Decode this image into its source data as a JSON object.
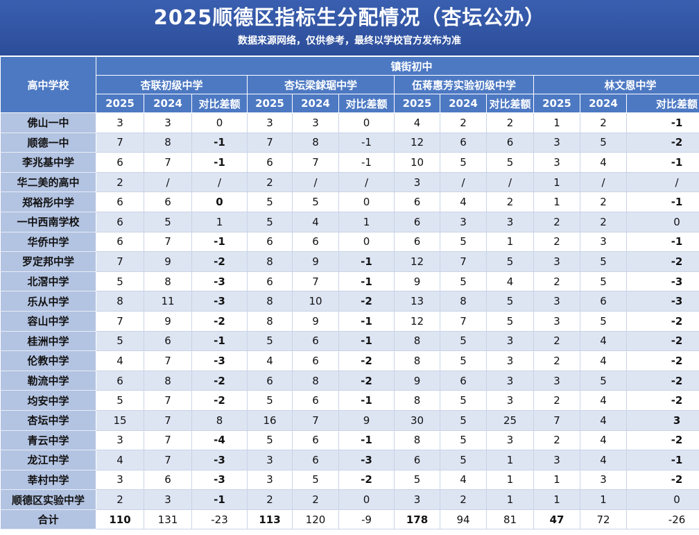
{
  "header": {
    "title": "2025顺德区指标生分配情况（杏坛公办）",
    "subtitle": "数据来源网络，仅供参考，最终以学校官方发布为准"
  },
  "table": {
    "corner_label": "高中学校",
    "group_label": "镇街初中",
    "schools": [
      "杏联初级中学",
      "杏坛梁銶琚中学",
      "伍蒋惠芳实验初级中学",
      "林文恩中学"
    ],
    "sub_columns": [
      "2025",
      "2024",
      "对比差额"
    ],
    "rows": [
      {
        "name": "佛山一中",
        "cells": [
          [
            "3",
            "3",
            "0"
          ],
          [
            "3",
            "3",
            "0"
          ],
          [
            "4",
            "2",
            "2"
          ],
          [
            "1",
            "2",
            "-1"
          ]
        ]
      },
      {
        "name": "顺德一中",
        "cells": [
          [
            "7",
            "8",
            "-1"
          ],
          [
            "7",
            "8",
            "-1"
          ],
          [
            "12",
            "6",
            "6"
          ],
          [
            "3",
            "5",
            "-2"
          ]
        ]
      },
      {
        "name": "李兆基中学",
        "cells": [
          [
            "6",
            "7",
            "-1"
          ],
          [
            "6",
            "7",
            "-1"
          ],
          [
            "10",
            "5",
            "5"
          ],
          [
            "3",
            "4",
            "-1"
          ]
        ]
      },
      {
        "name": "华二美的高中",
        "cells": [
          [
            "2",
            "/",
            "/"
          ],
          [
            "2",
            "/",
            "/"
          ],
          [
            "3",
            "/",
            "/"
          ],
          [
            "1",
            "/",
            "/"
          ]
        ]
      },
      {
        "name": "郑裕彤中学",
        "cells": [
          [
            "6",
            "6",
            "0"
          ],
          [
            "5",
            "5",
            "0"
          ],
          [
            "6",
            "4",
            "2"
          ],
          [
            "1",
            "2",
            "-1"
          ]
        ]
      },
      {
        "name": "一中西南学校",
        "cells": [
          [
            "6",
            "5",
            "1"
          ],
          [
            "5",
            "4",
            "1"
          ],
          [
            "6",
            "3",
            "3"
          ],
          [
            "2",
            "2",
            "0"
          ]
        ]
      },
      {
        "name": "华侨中学",
        "cells": [
          [
            "6",
            "7",
            "-1"
          ],
          [
            "6",
            "6",
            "0"
          ],
          [
            "6",
            "5",
            "1"
          ],
          [
            "2",
            "3",
            "-1"
          ]
        ]
      },
      {
        "name": "罗定邦中学",
        "cells": [
          [
            "7",
            "9",
            "-2"
          ],
          [
            "8",
            "9",
            "-1"
          ],
          [
            "12",
            "7",
            "5"
          ],
          [
            "3",
            "5",
            "-2"
          ]
        ]
      },
      {
        "name": "北滘中学",
        "cells": [
          [
            "5",
            "8",
            "-3"
          ],
          [
            "6",
            "7",
            "-1"
          ],
          [
            "9",
            "5",
            "4"
          ],
          [
            "2",
            "5",
            "-3"
          ]
        ]
      },
      {
        "name": "乐从中学",
        "cells": [
          [
            "8",
            "11",
            "-3"
          ],
          [
            "8",
            "10",
            "-2"
          ],
          [
            "13",
            "8",
            "5"
          ],
          [
            "3",
            "6",
            "-3"
          ]
        ]
      },
      {
        "name": "容山中学",
        "cells": [
          [
            "7",
            "9",
            "-2"
          ],
          [
            "8",
            "9",
            "-1"
          ],
          [
            "12",
            "7",
            "5"
          ],
          [
            "3",
            "5",
            "-2"
          ]
        ]
      },
      {
        "name": "桂洲中学",
        "cells": [
          [
            "5",
            "6",
            "-1"
          ],
          [
            "5",
            "6",
            "-1"
          ],
          [
            "8",
            "5",
            "3"
          ],
          [
            "2",
            "4",
            "-2"
          ]
        ]
      },
      {
        "name": "伦教中学",
        "cells": [
          [
            "4",
            "7",
            "-3"
          ],
          [
            "4",
            "6",
            "-2"
          ],
          [
            "8",
            "5",
            "3"
          ],
          [
            "2",
            "4",
            "-2"
          ]
        ]
      },
      {
        "name": "勒流中学",
        "cells": [
          [
            "6",
            "8",
            "-2"
          ],
          [
            "6",
            "8",
            "-2"
          ],
          [
            "9",
            "6",
            "3"
          ],
          [
            "3",
            "5",
            "-2"
          ]
        ]
      },
      {
        "name": "均安中学",
        "cells": [
          [
            "5",
            "7",
            "-2"
          ],
          [
            "5",
            "6",
            "-1"
          ],
          [
            "8",
            "5",
            "3"
          ],
          [
            "2",
            "4",
            "-2"
          ]
        ]
      },
      {
        "name": "杏坛中学",
        "cells": [
          [
            "15",
            "7",
            "8"
          ],
          [
            "16",
            "7",
            "9"
          ],
          [
            "30",
            "5",
            "25"
          ],
          [
            "7",
            "4",
            "3"
          ]
        ]
      },
      {
        "name": "青云中学",
        "cells": [
          [
            "3",
            "7",
            "-4"
          ],
          [
            "5",
            "6",
            "-1"
          ],
          [
            "8",
            "5",
            "3"
          ],
          [
            "2",
            "4",
            "-2"
          ]
        ]
      },
      {
        "name": "龙江中学",
        "cells": [
          [
            "4",
            "7",
            "-3"
          ],
          [
            "3",
            "6",
            "-3"
          ],
          [
            "6",
            "5",
            "1"
          ],
          [
            "3",
            "4",
            "-1"
          ]
        ]
      },
      {
        "name": "莘村中学",
        "cells": [
          [
            "3",
            "6",
            "-3"
          ],
          [
            "3",
            "5",
            "-2"
          ],
          [
            "5",
            "4",
            "1"
          ],
          [
            "1",
            "3",
            "-2"
          ]
        ]
      },
      {
        "name": "顺德区实验中学",
        "cells": [
          [
            "2",
            "3",
            "-1"
          ],
          [
            "2",
            "2",
            "0"
          ],
          [
            "3",
            "2",
            "1"
          ],
          [
            "1",
            "1",
            "0"
          ]
        ]
      }
    ],
    "total": {
      "name": "合计",
      "cells": [
        [
          "110",
          "131",
          "-23"
        ],
        [
          "113",
          "120",
          "-9"
        ],
        [
          "178",
          "94",
          "81"
        ],
        [
          "47",
          "72",
          "-26"
        ]
      ]
    },
    "bold_cells": [
      "1-0-2",
      "2-0-2",
      "4-0-2",
      "6-0-2",
      "7-0-2",
      "8-0-2",
      "9-0-2",
      "10-0-2",
      "11-0-2",
      "12-0-2",
      "13-0-2",
      "14-0-2",
      "16-0-2",
      "17-0-2",
      "18-0-2",
      "19-0-2",
      "7-1-2",
      "8-1-2",
      "9-1-2",
      "10-1-2",
      "11-1-2",
      "12-1-2",
      "13-1-2",
      "14-1-2",
      "16-1-2",
      "17-1-2",
      "18-1-2",
      "0-3-2",
      "1-3-2",
      "2-3-2",
      "4-3-2",
      "6-3-2",
      "7-3-2",
      "8-3-2",
      "9-3-2",
      "10-3-2",
      "11-3-2",
      "12-3-2",
      "13-3-2",
      "14-3-2",
      "15-3-2",
      "16-3-2",
      "17-3-2",
      "18-3-2"
    ],
    "bold_total": [
      "0-0",
      "1-0",
      "2-0",
      "3-0"
    ]
  }
}
